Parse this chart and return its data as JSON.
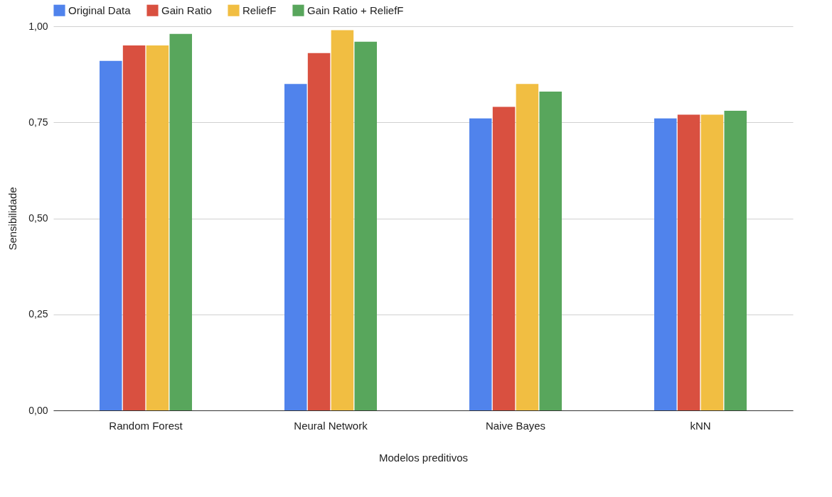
{
  "chart_data": {
    "type": "bar",
    "xlabel": "Modelos preditivos",
    "ylabel": "Sensibilidade",
    "categories": [
      "Random Forest",
      "Neural Network",
      "Naive Bayes",
      "kNN"
    ],
    "series": [
      {
        "name": "Original Data",
        "color": "#5083ec",
        "values": [
          0.91,
          0.85,
          0.76,
          0.76
        ]
      },
      {
        "name": "Gain Ratio",
        "color": "#d95040",
        "values": [
          0.95,
          0.93,
          0.79,
          0.77
        ]
      },
      {
        "name": "ReliefF",
        "color": "#f1be42",
        "values": [
          0.95,
          0.99,
          0.85,
          0.77
        ]
      },
      {
        "name": "Gain Ratio + ReliefF",
        "color": "#58a65c",
        "values": [
          0.98,
          0.96,
          0.83,
          0.78
        ]
      }
    ],
    "ylim": [
      0,
      1
    ],
    "yticks": [
      {
        "value": 0,
        "label": "0,00"
      },
      {
        "value": 0.25,
        "label": "0,25"
      },
      {
        "value": 0.5,
        "label": "0,50"
      },
      {
        "value": 0.75,
        "label": "0,75"
      },
      {
        "value": 1,
        "label": "1,00"
      }
    ],
    "grid": "y",
    "legend": "top"
  }
}
